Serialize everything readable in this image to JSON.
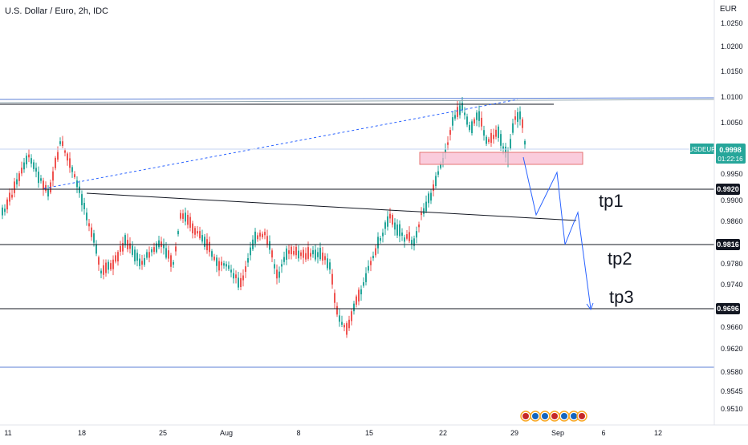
{
  "header": {
    "title": "U.S. Dollar / Euro, 2h, IDC"
  },
  "price_axis": {
    "currency": "EUR",
    "ticks": [
      "1.0250",
      "1.0200",
      "1.0150",
      "1.0100",
      "1.0050",
      "0.9950",
      "0.9900",
      "0.9860",
      "0.9780",
      "0.9740",
      "0.9660",
      "0.9620",
      "0.9580",
      "0.9545",
      "0.9510"
    ]
  },
  "time_axis": {
    "ticks": [
      "11",
      "18",
      "25",
      "Aug",
      "8",
      "15",
      "22",
      "29",
      "Sep",
      "6",
      "12"
    ]
  },
  "symbol_badge": {
    "symbol": "USDEUR",
    "price": "0.9998",
    "countdown": "01:22:16",
    "color": "#26a69a"
  },
  "price_markers": [
    {
      "label": "0.9920"
    },
    {
      "label": "0.9816"
    },
    {
      "label": "0.9696"
    }
  ],
  "annotations": [
    {
      "text": "tp1"
    },
    {
      "text": "tp2"
    },
    {
      "text": "tp3"
    }
  ],
  "colors": {
    "bull": "#26a69a",
    "bear": "#ef5350",
    "projection": "#2962ff",
    "zone_fill": "#f8bbd0",
    "zone_border": "#e57373",
    "level_line": "#131722",
    "blue_line": "#5b7fd6"
  }
}
